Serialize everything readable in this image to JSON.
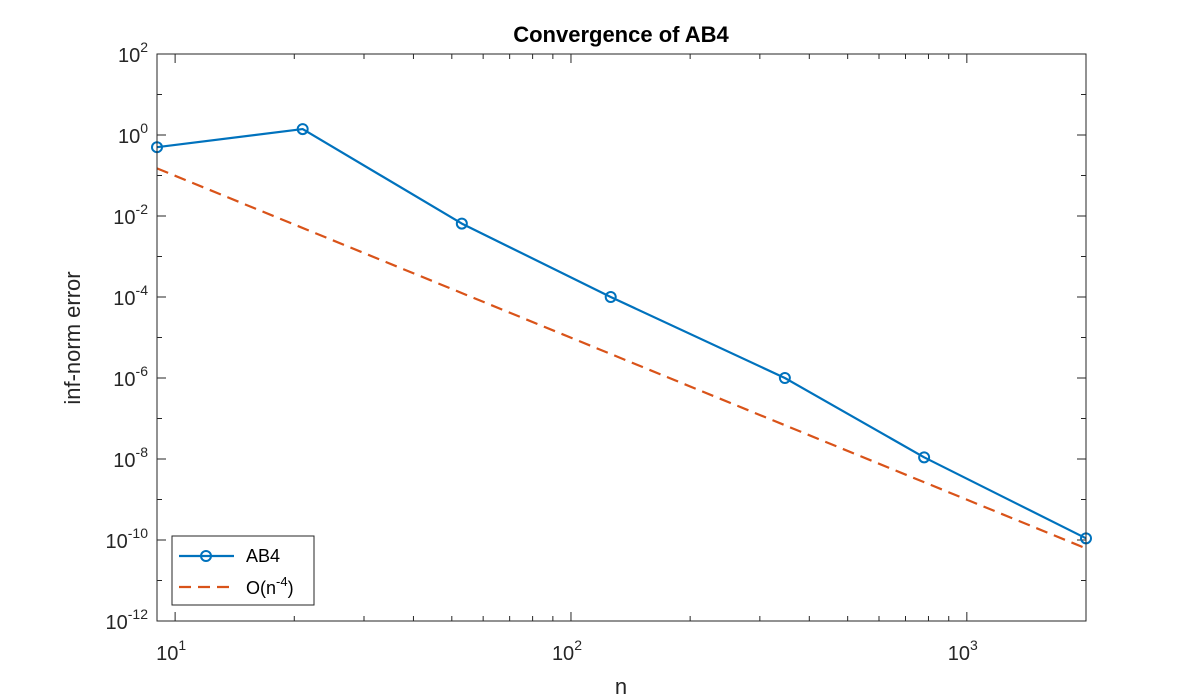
{
  "chart_data": {
    "type": "line",
    "title": "Convergence of AB4",
    "xlabel": "n",
    "ylabel": "inf-norm error",
    "xscale": "log",
    "yscale": "log",
    "xlim": [
      9,
      2000
    ],
    "ylim": [
      1e-12,
      100
    ],
    "grid": false,
    "box": true,
    "legend_position": "bottom-left",
    "x_ticks": [
      {
        "value": 10,
        "base": "10",
        "exp": "1"
      },
      {
        "value": 100,
        "base": "10",
        "exp": "2"
      },
      {
        "value": 1000,
        "base": "10",
        "exp": "3"
      }
    ],
    "y_ticks": [
      {
        "value": 1e-12,
        "base": "10",
        "exp": "-12"
      },
      {
        "value": 1e-10,
        "base": "10",
        "exp": "-10"
      },
      {
        "value": 1e-08,
        "base": "10",
        "exp": "-8"
      },
      {
        "value": 1e-06,
        "base": "10",
        "exp": "-6"
      },
      {
        "value": 0.0001,
        "base": "10",
        "exp": "-4"
      },
      {
        "value": 0.01,
        "base": "10",
        "exp": "-2"
      },
      {
        "value": 1,
        "base": "10",
        "exp": "0"
      },
      {
        "value": 100,
        "base": "10",
        "exp": "2"
      }
    ],
    "series": [
      {
        "name": "AB4",
        "color": "#0072BD",
        "style": "solid",
        "marker": "circle",
        "x": [
          9,
          21,
          53,
          126,
          347,
          780,
          2000
        ],
        "y": [
          0.5,
          1.4,
          0.0065,
          0.0001,
          1e-06,
          1.1e-08,
          1.1e-10
        ]
      },
      {
        "name": "O(n-4)",
        "legend_text": "O(n",
        "legend_sup": "-4",
        "legend_suffix": ")",
        "color": "#D95319",
        "style": "dashed",
        "marker": "none",
        "x": [
          9,
          2000
        ],
        "y": [
          0.15,
          6.2e-11
        ]
      }
    ]
  }
}
